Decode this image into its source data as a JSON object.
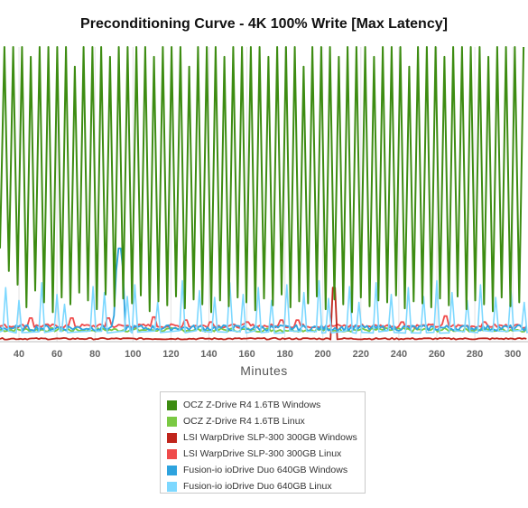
{
  "chart_data": {
    "type": "line",
    "title": "Preconditioning Curve - 4K 100% Write [Max Latency]",
    "xlabel": "Minutes",
    "ylabel": "",
    "x_ticks": [
      40,
      60,
      80,
      100,
      120,
      140,
      160,
      180,
      200,
      220,
      240,
      260,
      280,
      300
    ],
    "xlim": [
      30,
      308
    ],
    "y_axis_labels_visible": false,
    "grid": "vertical",
    "legend_position": "bottom-center",
    "series": [
      {
        "name": "OCZ Z-Drive R4 1.6TB Windows",
        "color": "#3d8c12",
        "pattern": "oscillating",
        "low": [
          0.95,
          0.72,
          0.58,
          0.35,
          0.52,
          0.4,
          0.3,
          0.45,
          0.38,
          0.5,
          0.42,
          0.33,
          0.48,
          0.36,
          0.44,
          0.39,
          0.47,
          0.31,
          0.41,
          0.37,
          0.46,
          0.34,
          0.43,
          0.38,
          0.3,
          0.42,
          0.36,
          0.45,
          0.4,
          0.32,
          0.44,
          0.37,
          0.48,
          0.35,
          0.41,
          0.39,
          0.46,
          0.33,
          0.43,
          0.38,
          0.3,
          0.45,
          0.36,
          0.42,
          0.4,
          0.47,
          0.34,
          0.41,
          0.39,
          0.35,
          0.44,
          0.37,
          0.46,
          0.33,
          0.42,
          0.38,
          0.31,
          0.45,
          0.36,
          0.4
        ],
        "high": [
          3.2,
          3.0,
          3.1,
          2.9,
          3.2,
          3.0,
          3.1,
          3.2,
          2.8,
          3.1,
          3.0,
          3.2,
          2.9,
          3.1,
          3.0,
          3.2,
          3.1,
          2.9,
          3.2,
          3.0,
          3.1,
          2.8,
          3.2,
          3.0,
          3.1,
          2.9,
          3.2,
          3.0,
          3.1,
          3.2,
          2.9,
          3.0,
          3.1,
          3.2,
          2.8,
          3.0,
          3.1,
          3.2,
          2.9,
          3.0,
          3.2,
          3.1,
          2.9,
          3.0,
          3.2,
          3.1,
          2.8,
          3.0,
          3.2,
          3.1,
          2.9,
          3.0,
          3.2,
          3.1,
          3.0,
          2.9,
          3.2,
          3.1,
          3.0,
          3.2
        ]
      },
      {
        "name": "OCZ Z-Drive R4 1.6TB Linux",
        "color": "#7ac943",
        "pattern": "flat",
        "base": 0.12,
        "noise": 0.02
      },
      {
        "name": "LSI WarpDrive SLP-300 300GB Windows",
        "color": "#c0251c",
        "pattern": "flat",
        "base": 0.03,
        "noise": 0.008,
        "spikes": [
          [
            206,
            0.55
          ]
        ]
      },
      {
        "name": "LSI WarpDrive SLP-300 300GB Linux",
        "color": "#ef4b4b",
        "pattern": "flat",
        "base": 0.16,
        "noise": 0.02,
        "spikes": [
          [
            46,
            0.24
          ],
          [
            68,
            0.24
          ],
          [
            87,
            0.24
          ],
          [
            111,
            0.25
          ],
          [
            128,
            0.22
          ],
          [
            141,
            0.2
          ],
          [
            160,
            0.2
          ],
          [
            178,
            0.22
          ],
          [
            186,
            0.22
          ],
          [
            242,
            0.2
          ],
          [
            265,
            0.26
          ],
          [
            285,
            0.2
          ]
        ]
      },
      {
        "name": "Fusion-io ioDrive Duo 640GB Windows",
        "color": "#2ea3de",
        "pattern": "flat",
        "base": 0.14,
        "noise": 0.03,
        "spikes": [
          [
            93,
            0.95
          ]
        ]
      },
      {
        "name": "Fusion-io ioDrive Duo 640GB Linux",
        "color": "#7dd8ff",
        "pattern": "spiky",
        "base": 0.1,
        "spike_x": [
          33,
          40,
          52,
          60,
          64,
          79,
          85,
          97,
          101,
          113,
          126,
          135,
          143,
          151,
          158,
          166,
          173,
          181,
          190,
          198,
          203,
          214,
          219,
          228,
          236,
          245,
          253,
          260,
          268,
          276,
          283,
          291,
          299,
          306
        ],
        "spike_y": [
          0.55,
          0.42,
          0.6,
          0.48,
          0.38,
          0.56,
          0.5,
          0.46,
          0.58,
          0.4,
          0.62,
          0.52,
          0.45,
          0.6,
          0.48,
          0.55,
          0.42,
          0.58,
          0.5,
          0.62,
          0.44,
          0.56,
          0.4,
          0.6,
          0.48,
          0.55,
          0.46,
          0.62,
          0.5,
          0.42,
          0.58,
          0.45,
          0.52,
          0.4
        ]
      }
    ]
  }
}
